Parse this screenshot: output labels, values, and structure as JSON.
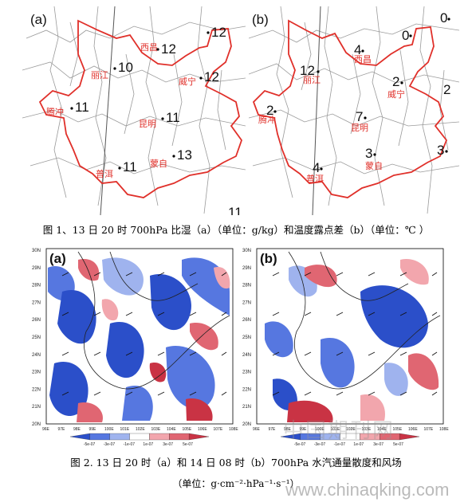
{
  "fig1": {
    "a": {
      "panel_label": "(a)",
      "stations": [
        {
          "name": "西昌",
          "value": "12"
        },
        {
          "name": "",
          "value": "12"
        },
        {
          "name": "丽江",
          "value": "10"
        },
        {
          "name": "威宁",
          "value": "12"
        },
        {
          "name": "腾冲",
          "value": "11"
        },
        {
          "name": "昆明",
          "value": "11"
        },
        {
          "name": "蒙自",
          "value": "13"
        },
        {
          "name": "普洱",
          "value": "11"
        }
      ],
      "edge_value": "11"
    },
    "b": {
      "panel_label": "(b)",
      "stations": [
        {
          "name": "",
          "value": "0"
        },
        {
          "name": "",
          "value": "0"
        },
        {
          "name": "西昌",
          "value": "4"
        },
        {
          "name": "丽江",
          "value": "12"
        },
        {
          "name": "威宁",
          "value": "2"
        },
        {
          "name": "",
          "value": "2"
        },
        {
          "name": "腾冲",
          "value": "2"
        },
        {
          "name": "昆明",
          "value": "7"
        },
        {
          "name": "蒙自",
          "value": "3"
        },
        {
          "name": "",
          "value": "3"
        },
        {
          "name": "普洱",
          "value": "4"
        }
      ]
    },
    "caption": "图 1、13 日 20 时 700hPa 比湿（a）（单位：g/kg）和温度露点差（b）（单位：℃ ）"
  },
  "fig2": {
    "a": {
      "panel_label": "(a)"
    },
    "b": {
      "panel_label": "(b)"
    },
    "lat_labels": [
      "30N",
      "29N",
      "28N",
      "27N",
      "26N",
      "25N",
      "24N",
      "23N",
      "22N",
      "21N",
      "20N"
    ],
    "lon_labels": [
      "96E",
      "97E",
      "98E",
      "99E",
      "100E",
      "101E",
      "102E",
      "103E",
      "104E",
      "105E",
      "106E",
      "107E",
      "108E"
    ],
    "colorbar_labels": [
      "-5e-07",
      "-3e-07",
      "-1e-07",
      "1e-07",
      "3e-07",
      "5e-07"
    ],
    "colorbar_colors": [
      "#2b4fc9",
      "#5677e0",
      "#9fb3ee",
      "#ffffff",
      "#f2a6ad",
      "#e06672",
      "#c93344"
    ],
    "caption": "图 2. 13 日 20 时（a）和 14 日 08 时（b）700hPa 水汽通量散度和风场",
    "units": "（单位：g·cm⁻²·hPa⁻¹·s⁻¹）"
  },
  "watermark": {
    "cn": "中国期刊网",
    "url": "www.chinaqking.com"
  }
}
